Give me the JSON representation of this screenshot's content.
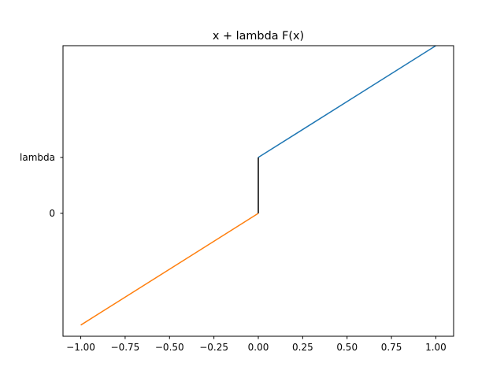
{
  "chart_data": {
    "type": "line",
    "title": "x + lambda F(x)",
    "xlabel": "",
    "ylabel": "",
    "xlim": [
      -1.1,
      1.1
    ],
    "ylim": [
      -1.1,
      1.5
    ],
    "lambda_value": 0.5,
    "x_ticks": [
      {
        "value": -1.0,
        "label": "−1.00"
      },
      {
        "value": -0.75,
        "label": "−0.75"
      },
      {
        "value": -0.5,
        "label": "−0.50"
      },
      {
        "value": -0.25,
        "label": "−0.25"
      },
      {
        "value": 0.0,
        "label": "0.00"
      },
      {
        "value": 0.25,
        "label": "0.25"
      },
      {
        "value": 0.5,
        "label": "0.50"
      },
      {
        "value": 0.75,
        "label": "0.75"
      },
      {
        "value": 1.0,
        "label": "1.00"
      }
    ],
    "y_ticks": [
      {
        "value": 0,
        "label": "0"
      },
      {
        "value": 0.5,
        "label": "lambda"
      }
    ],
    "grid": false,
    "series": [
      {
        "color": "#1f77b4",
        "x": [
          0,
          1
        ],
        "y": [
          0.5,
          1.5
        ]
      },
      {
        "color": "#ff7f0e",
        "x": [
          -1,
          0
        ],
        "y": [
          -1.0,
          0
        ]
      },
      {
        "color": "#000000",
        "x": [
          0,
          0
        ],
        "y": [
          0,
          0.5
        ]
      }
    ]
  }
}
